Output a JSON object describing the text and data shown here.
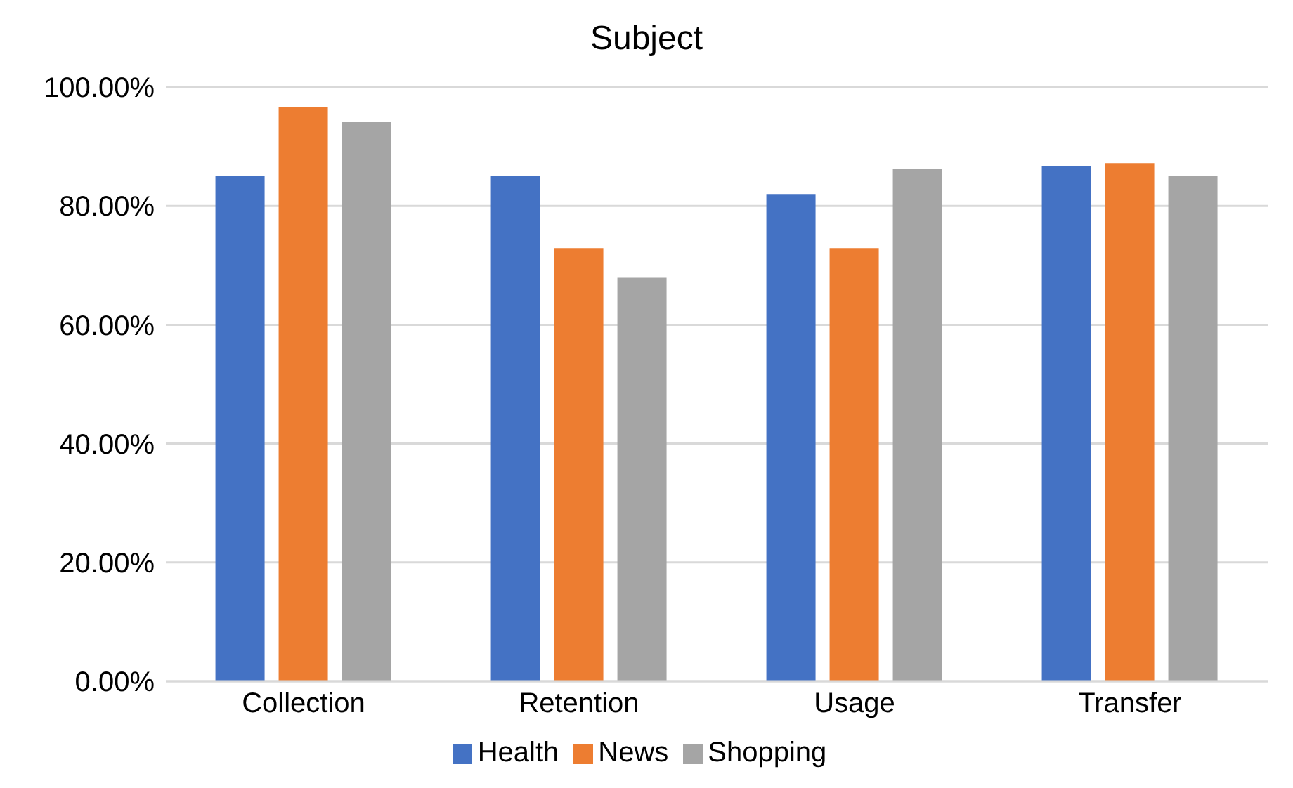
{
  "chart_data": {
    "type": "bar",
    "title": "Subject",
    "categories": [
      "Collection",
      "Retention",
      "Usage",
      "Transfer"
    ],
    "series": [
      {
        "name": "Health",
        "color": "#4472c4",
        "values": [
          85.0,
          85.0,
          82.0,
          86.7
        ]
      },
      {
        "name": "News",
        "color": "#ed7d31",
        "values": [
          96.7,
          72.9,
          72.9,
          87.2
        ]
      },
      {
        "name": "Shopping",
        "color": "#a5a5a5",
        "values": [
          94.2,
          67.9,
          86.2,
          85.0
        ]
      }
    ],
    "ylim": [
      0,
      100
    ],
    "yticks": [
      {
        "value": 0,
        "label": "0.00%"
      },
      {
        "value": 20,
        "label": "20.00%"
      },
      {
        "value": 40,
        "label": "40.00%"
      },
      {
        "value": 60,
        "label": "60.00%"
      },
      {
        "value": 80,
        "label": "80.00%"
      },
      {
        "value": 100,
        "label": "100.00%"
      }
    ],
    "grid": "y",
    "legend": "bottom"
  }
}
